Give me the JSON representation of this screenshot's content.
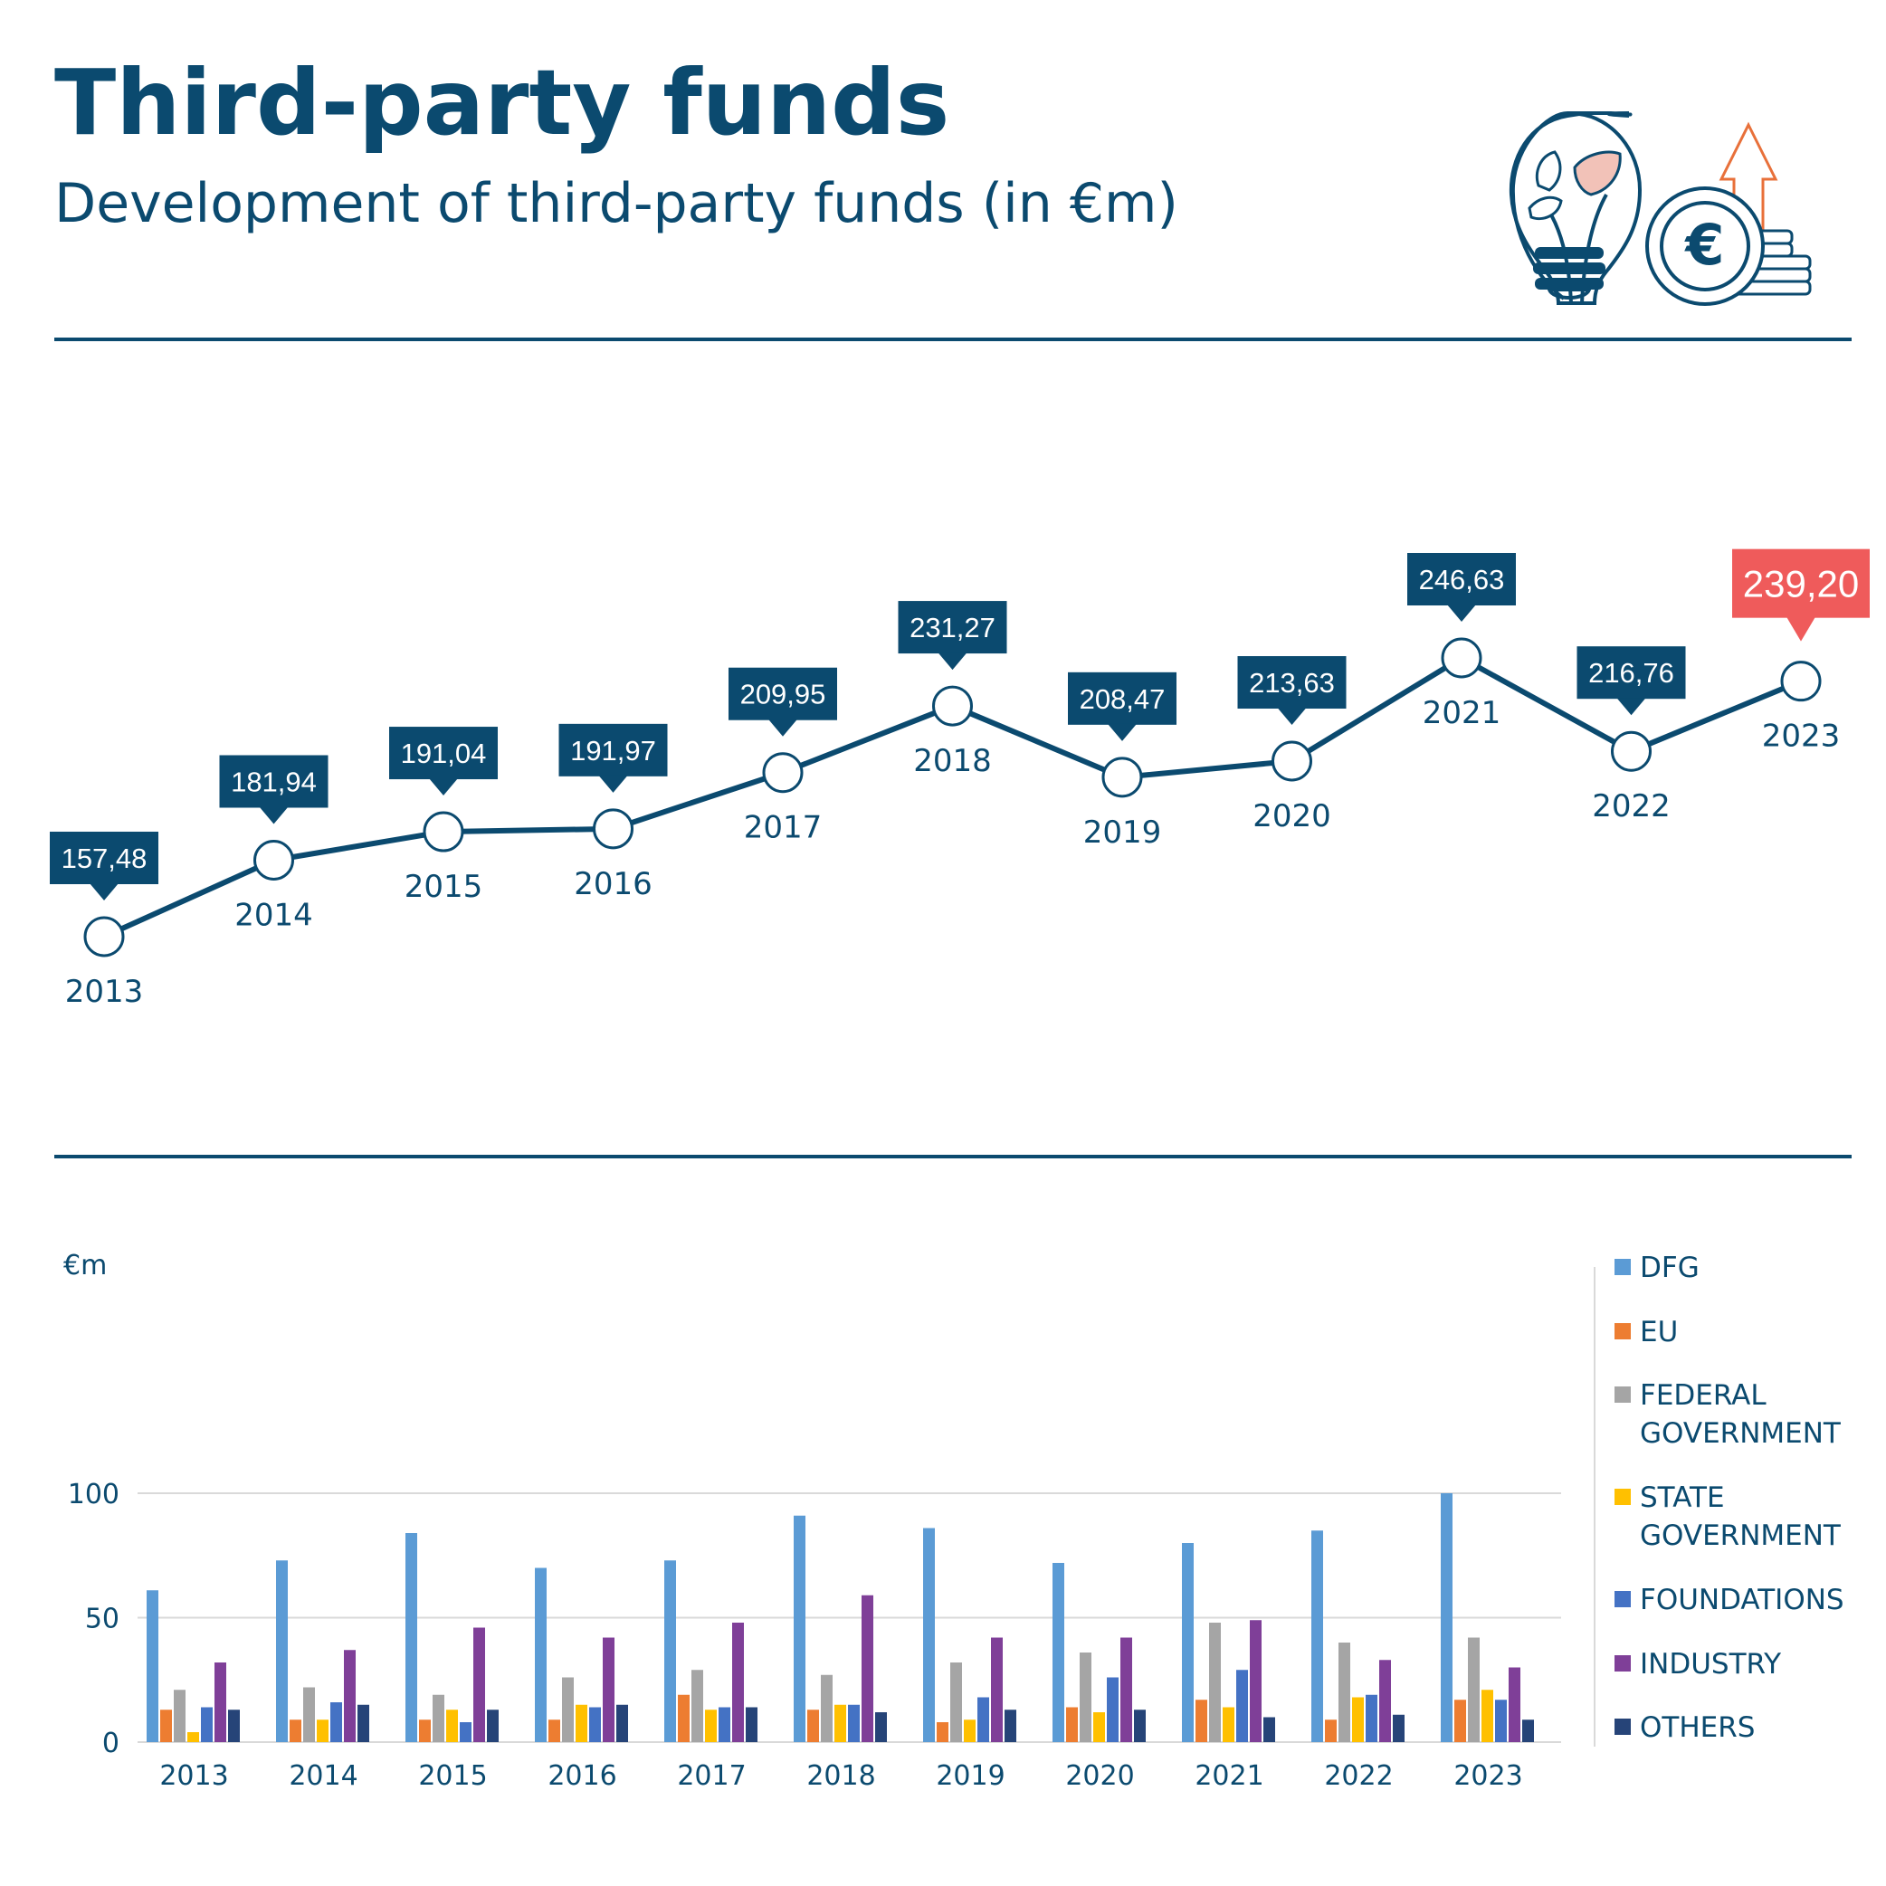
{
  "header": {
    "title": "Third-party funds",
    "subtitle": "Development of third-party funds (in €m)"
  },
  "icons": [
    "lightbulb-with-leaves-icon",
    "euro-coins-growth-icon"
  ],
  "colors": {
    "primary": "#0b4a6f",
    "highlight": "#ef5b5b",
    "icon_orange": "#e8703a",
    "leaf_pink": "#f2c2b8"
  },
  "chart_data": [
    {
      "type": "line",
      "title": "",
      "x": [
        "2013",
        "2014",
        "2015",
        "2016",
        "2017",
        "2018",
        "2019",
        "2020",
        "2021",
        "2022",
        "2023"
      ],
      "value_labels": [
        "157,48",
        "181,94",
        "191,04",
        "191,97",
        "209,95",
        "231,27",
        "208,47",
        "213,63",
        "246,63",
        "216,76",
        "239,20"
      ],
      "series": [
        {
          "values": [
            157.48,
            181.94,
            191.04,
            191.97,
            209.95,
            231.27,
            208.47,
            213.63,
            246.63,
            216.76,
            239.2
          ]
        }
      ],
      "highlight_year": "2023",
      "grid": false
    },
    {
      "type": "bar",
      "ylabel": "€m",
      "categories": [
        "2013",
        "2014",
        "2015",
        "2016",
        "2017",
        "2018",
        "2019",
        "2020",
        "2021",
        "2022",
        "2023"
      ],
      "ylim": [
        0,
        100
      ],
      "yticks": [
        0,
        50,
        100
      ],
      "grid": true,
      "legend_position": "right",
      "series": [
        {
          "name": "DFG",
          "color": "#5b9bd5",
          "values": [
            61,
            73,
            84,
            70,
            73,
            91,
            86,
            72,
            80,
            85,
            100
          ]
        },
        {
          "name": "EU",
          "color": "#ed7d31",
          "values": [
            13,
            9,
            9,
            9,
            19,
            13,
            8,
            14,
            17,
            9,
            17
          ]
        },
        {
          "name": "FEDERAL GOVERNMENT",
          "color": "#a5a5a5",
          "values": [
            21,
            22,
            19,
            26,
            29,
            27,
            32,
            36,
            48,
            40,
            42
          ]
        },
        {
          "name": "STATE GOVERNMENT",
          "color": "#ffc000",
          "values": [
            4,
            9,
            13,
            15,
            13,
            15,
            9,
            12,
            14,
            18,
            21
          ]
        },
        {
          "name": "FOUNDATIONS",
          "color": "#4472c4",
          "values": [
            14,
            16,
            8,
            14,
            14,
            15,
            18,
            26,
            29,
            19,
            17
          ]
        },
        {
          "name": "INDUSTRY",
          "color": "#7f3f98",
          "values": [
            32,
            37,
            46,
            42,
            48,
            59,
            42,
            42,
            49,
            33,
            30
          ]
        },
        {
          "name": "OTHERS",
          "color": "#264478",
          "values": [
            13,
            15,
            13,
            15,
            14,
            12,
            13,
            13,
            10,
            11,
            9
          ]
        }
      ],
      "legend_lines": [
        [
          "DFG"
        ],
        [
          "EU"
        ],
        [
          "FEDERAL",
          "GOVERNMENT"
        ],
        [
          "STATE",
          "GOVERNMENT"
        ],
        [
          "FOUNDATIONS"
        ],
        [
          "INDUSTRY"
        ],
        [
          "OTHERS"
        ]
      ]
    }
  ]
}
